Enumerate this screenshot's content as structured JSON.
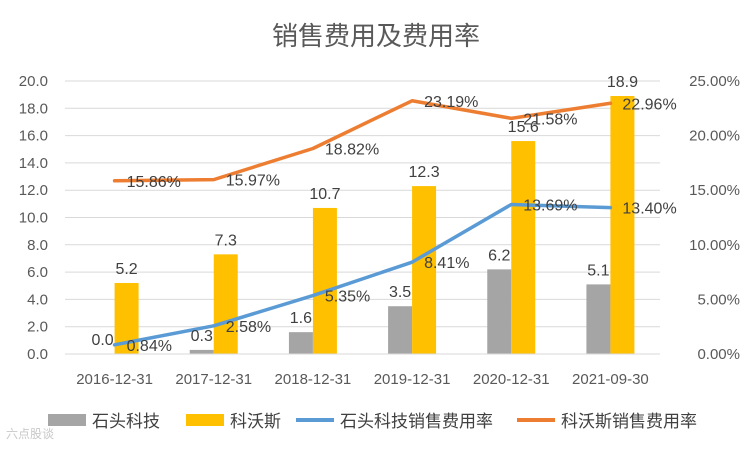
{
  "chart_data": {
    "type": "bar",
    "title": "销售费用及费用率",
    "categories": [
      "2016-12-31",
      "2017-12-31",
      "2018-12-31",
      "2019-12-31",
      "2020-12-31",
      "2021-09-30"
    ],
    "series": [
      {
        "name": "石头科技",
        "kind": "bar",
        "axis": "left",
        "color": "#a5a5a5",
        "values": [
          0.0,
          0.3,
          1.6,
          3.5,
          6.2,
          5.1
        ],
        "labels": [
          "0.0",
          "0.3",
          "1.6",
          "3.5",
          "6.2",
          "5.1"
        ]
      },
      {
        "name": "科沃斯",
        "kind": "bar",
        "axis": "left",
        "color": "#ffc000",
        "values": [
          5.2,
          7.3,
          10.7,
          12.3,
          15.6,
          18.9
        ],
        "labels": [
          "5.2",
          "7.3",
          "10.7",
          "12.3",
          "15.6",
          "18.9"
        ]
      },
      {
        "name": "石头科技销售费用率",
        "kind": "line",
        "axis": "right",
        "color": "#5b9bd5",
        "values": [
          0.84,
          2.58,
          5.35,
          8.41,
          13.69,
          13.4
        ],
        "labels": [
          "0.84%",
          "2.58%",
          "5.35%",
          "8.41%",
          "13.69%",
          "13.40%"
        ]
      },
      {
        "name": "科沃斯销售费用率",
        "kind": "line",
        "axis": "right",
        "color": "#ed7d31",
        "values": [
          15.86,
          15.97,
          18.82,
          23.19,
          21.58,
          22.96
        ],
        "labels": [
          "15.86%",
          "15.97%",
          "18.82%",
          "23.19%",
          "21.58%",
          "22.96%"
        ]
      }
    ],
    "y_left": {
      "range": [
        0,
        20
      ],
      "ticks": [
        "0.0",
        "2.0",
        "4.0",
        "6.0",
        "8.0",
        "10.0",
        "12.0",
        "14.0",
        "16.0",
        "18.0",
        "20.0"
      ]
    },
    "y_right": {
      "range": [
        0,
        25
      ],
      "ticks": [
        "0.00%",
        "5.00%",
        "10.00%",
        "15.00%",
        "20.00%",
        "25.00%"
      ]
    },
    "grid": true,
    "legend_position": "bottom"
  },
  "watermark": "六点股谈"
}
